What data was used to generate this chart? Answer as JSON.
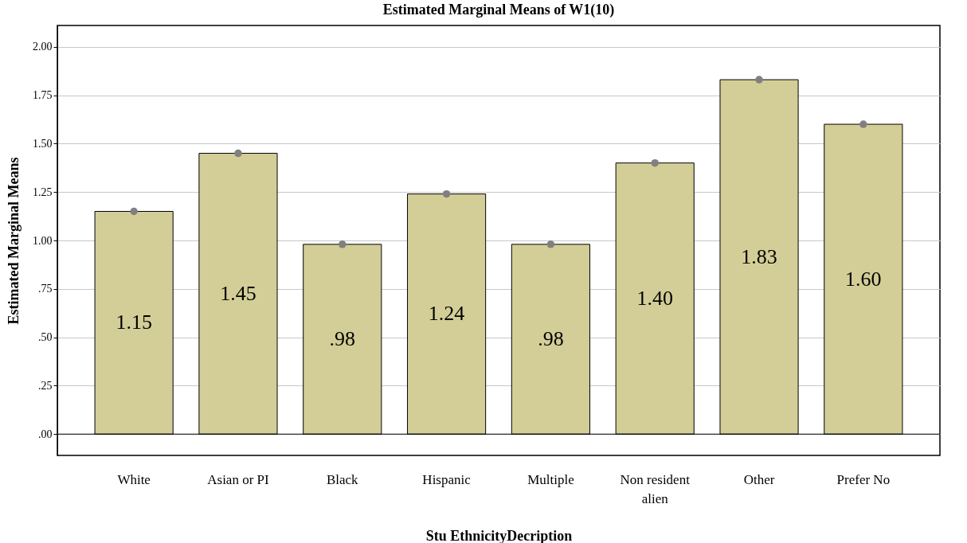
{
  "chart_data": {
    "type": "bar",
    "title": "Estimated Marginal Means of W1(10)",
    "xlabel": "Stu EthnicityDecription",
    "ylabel": "Estimated Marginal Means",
    "categories": [
      "White",
      "Asian or PI",
      "Black",
      "Hispanic",
      "Multiple",
      "Non resident alien",
      "Other",
      "Prefer No"
    ],
    "series": [
      {
        "type": "bar",
        "color": "#d3ce97",
        "values": [
          1.15,
          1.45,
          0.98,
          1.24,
          0.98,
          1.4,
          1.83,
          1.6
        ],
        "value_labels": [
          "1.15",
          "1.45",
          ".98",
          "1.24",
          ".98",
          "1.40",
          "1.83",
          "1.60"
        ]
      },
      {
        "type": "scatter",
        "color": "#808080",
        "x": [
          "White",
          "Asian or PI",
          "Black",
          "Hispanic",
          "Multiple",
          "Non resident alien",
          "Other",
          "Prefer No"
        ],
        "values": [
          1.15,
          1.45,
          0.98,
          1.24,
          0.98,
          1.4,
          1.83,
          1.6
        ]
      }
    ],
    "ylim": [
      -0.11,
      2.11
    ],
    "yticks": [
      {
        "value": 0,
        "label": ".00"
      },
      {
        "value": 0.25,
        "label": ".25"
      },
      {
        "value": 0.5,
        "label": ".50"
      },
      {
        "value": 0.75,
        "label": ".75"
      },
      {
        "value": 1,
        "label": "1.00"
      },
      {
        "value": 1.25,
        "label": "1.25"
      },
      {
        "value": 1.5,
        "label": "1.50"
      },
      {
        "value": 1.75,
        "label": "1.75"
      },
      {
        "value": 2,
        "label": "2.00"
      }
    ],
    "ref_lines": [
      {
        "axis": "y",
        "value": 0,
        "color": "#000000"
      }
    ],
    "grid": "y",
    "marker": "circle"
  }
}
